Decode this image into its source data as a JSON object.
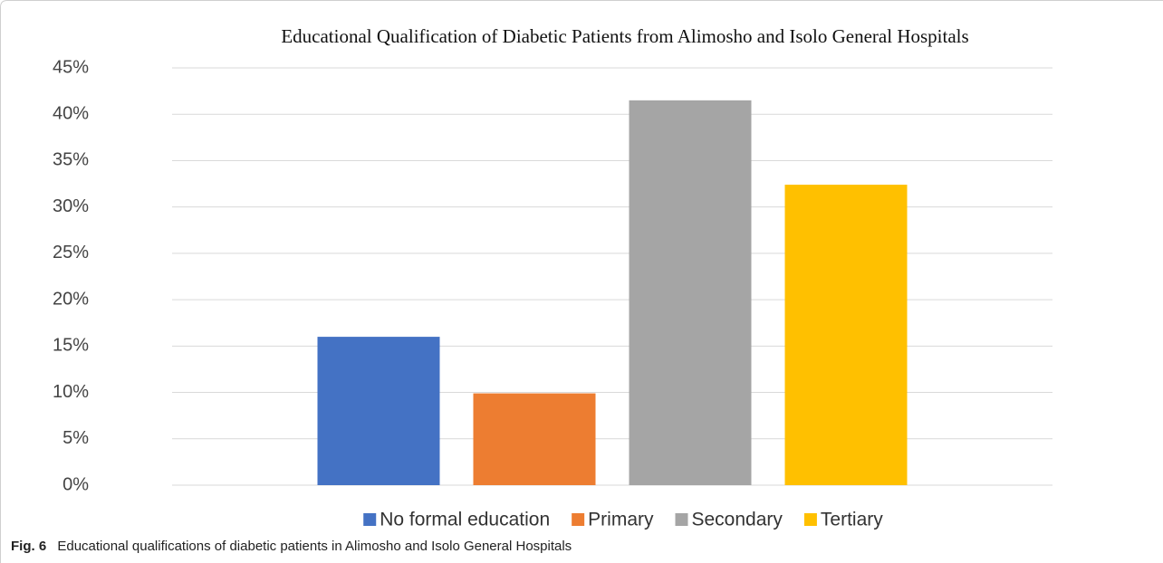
{
  "chart_data": {
    "type": "bar",
    "title": "Educational Qualification  of Diabetic Patients from Alimosho  and Isolo General Hospitals",
    "categories": [
      null
    ],
    "series": [
      {
        "name": "No formal education",
        "color": "#4472c4",
        "values": [
          16
        ]
      },
      {
        "name": "Primary",
        "color": "#ed7d31",
        "values": [
          9.9
        ]
      },
      {
        "name": "Secondary",
        "color": "#a5a5a5",
        "values": [
          41.5
        ]
      },
      {
        "name": "Tertiary",
        "color": "#ffc000",
        "values": [
          32.4
        ]
      }
    ],
    "ylim": [
      0,
      45
    ],
    "yticks": [
      {
        "value": 0,
        "label": "0%"
      },
      {
        "value": 5,
        "label": "5%"
      },
      {
        "value": 10,
        "label": "10%"
      },
      {
        "value": 15,
        "label": "15%"
      },
      {
        "value": 20,
        "label": "20%"
      },
      {
        "value": 25,
        "label": "25%"
      },
      {
        "value": 30,
        "label": "30%"
      },
      {
        "value": 35,
        "label": "35%"
      },
      {
        "value": 40,
        "label": "40%"
      },
      {
        "value": 45,
        "label": "45%"
      }
    ],
    "grid": true,
    "legend": "bottom"
  },
  "caption": {
    "label": "Fig. 6",
    "text": "Educational qualifications of diabetic patients in Alimosho and Isolo General Hospitals"
  }
}
